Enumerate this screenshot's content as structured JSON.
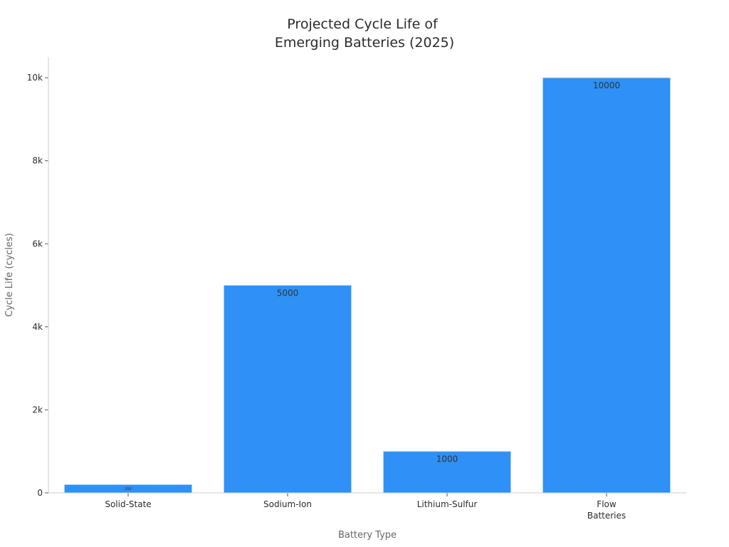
{
  "chart_data": {
    "type": "bar",
    "title_lines": [
      "Projected Cycle Life of",
      "Emerging Batteries (2025)"
    ],
    "xlabel": "Battery Type",
    "ylabel": "Cycle Life (cycles)",
    "categories": [
      [
        "Solid-State"
      ],
      [
        "Sodium-Ion"
      ],
      [
        "Lithium-Sulfur"
      ],
      [
        "Flow",
        "Batteries"
      ]
    ],
    "values": [
      200,
      5000,
      1000,
      10000
    ],
    "data_labels": [
      "200",
      "5000",
      "1000",
      "10000"
    ],
    "ylim": [
      0,
      10500
    ],
    "yticks": [
      0,
      2000,
      4000,
      6000,
      8000,
      10000
    ],
    "ytick_labels": [
      "0",
      "2k",
      "4k",
      "6k",
      "8k",
      "10k"
    ],
    "grid": false,
    "colors": {
      "bar": "#2f90f5",
      "bar_edge": "#bcd9f7",
      "axis": "#cccccc"
    }
  }
}
